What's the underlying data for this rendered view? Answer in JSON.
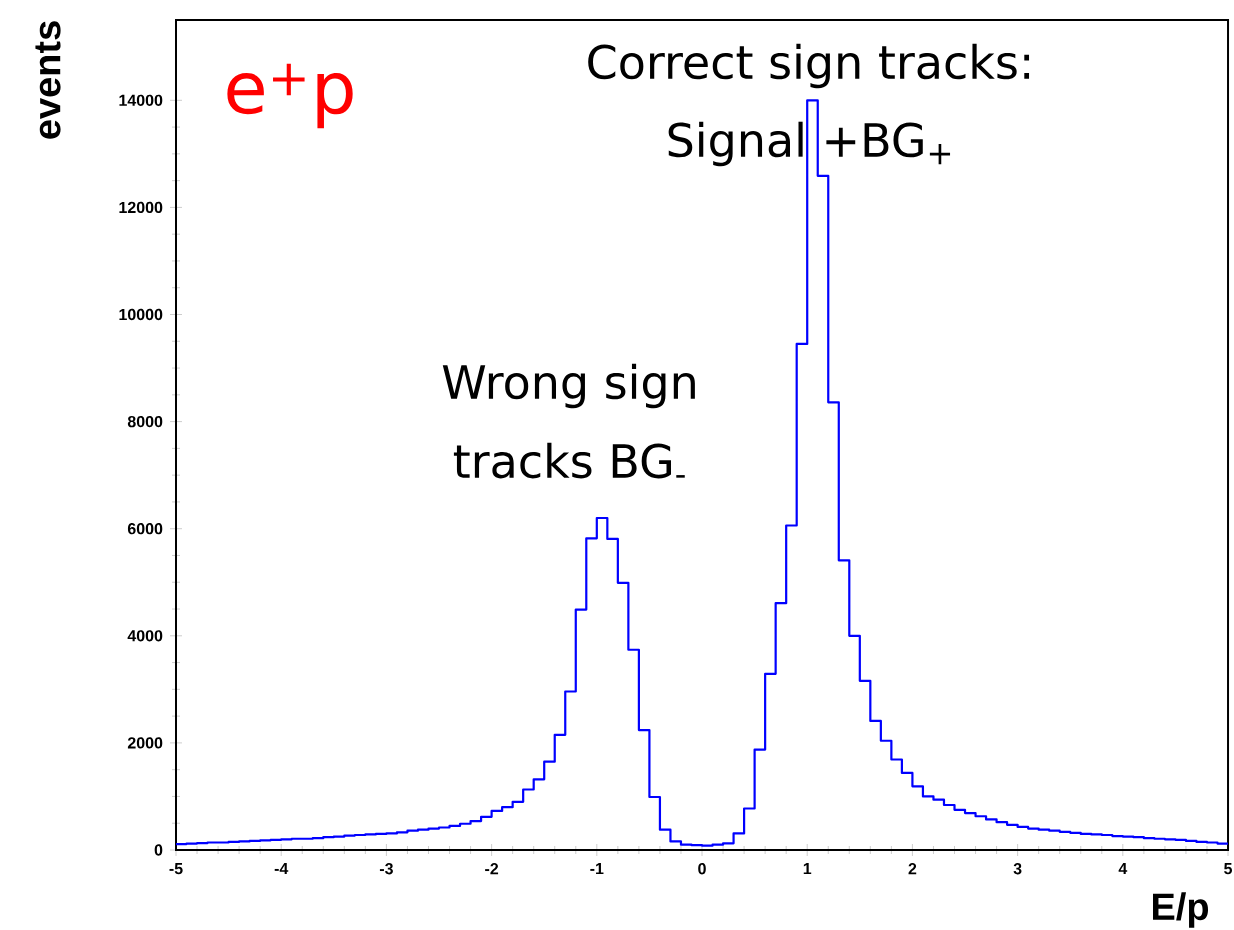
{
  "chart_data": {
    "type": "histogram",
    "xlabel": "E/p",
    "ylabel": "events",
    "annotations": [
      "e$^{+}$p",
      "Correct sign tracks:",
      "Signal +BG$_{+}$",
      "Wrong sign",
      "tracks BG$_{-}$"
    ],
    "color": "#0000ff",
    "bins": [
      -5,
      -4.9,
      -4.8,
      -4.7,
      -4.6,
      -4.5,
      -4.4,
      -4.3,
      -4.2,
      -4.1,
      -4,
      -3.9,
      -3.8,
      -3.7,
      -3.6,
      -3.5,
      -3.4,
      -3.3,
      -3.2,
      -3.1,
      -3,
      -2.9,
      -2.8,
      -2.7,
      -2.6,
      -2.5,
      -2.4,
      -2.3,
      -2.2,
      -2.1,
      -2,
      -1.9,
      -1.8,
      -1.7,
      -1.6,
      -1.5,
      -1.4,
      -1.3,
      -1.2,
      -1.1,
      -1,
      -0.9,
      -0.8,
      -0.7,
      -0.6,
      -0.5,
      -0.4,
      -0.3,
      -0.2,
      -0.1,
      0,
      0.1,
      0.2,
      0.3,
      0.4,
      0.5,
      0.6,
      0.7,
      0.8,
      0.9,
      1,
      1.1,
      1.2,
      1.3,
      1.4,
      1.5,
      1.6,
      1.7,
      1.8,
      1.9,
      2,
      2.1,
      2.2,
      2.3,
      2.4,
      2.5,
      2.6,
      2.7,
      2.8,
      2.9,
      3,
      3.1,
      3.2,
      3.3,
      3.4,
      3.5,
      3.6,
      3.7,
      3.8,
      3.9,
      4,
      4.1,
      4.2,
      4.3,
      4.4,
      4.5,
      4.6,
      4.7,
      4.8,
      4.9,
      5
    ],
    "values": [
      110,
      120,
      130,
      140,
      140,
      150,
      160,
      170,
      180,
      190,
      200,
      210,
      210,
      220,
      240,
      250,
      270,
      280,
      290,
      300,
      310,
      330,
      360,
      380,
      400,
      420,
      450,
      490,
      540,
      620,
      730,
      800,
      900,
      1130,
      1320,
      1650,
      2150,
      2960,
      4490,
      5820,
      6200,
      5810,
      4990,
      3740,
      2240,
      990,
      380,
      160,
      100,
      90,
      80,
      100,
      125,
      310,
      775,
      1875,
      3290,
      4610,
      6060,
      9450,
      14000,
      12590,
      8360,
      5410,
      4000,
      3160,
      2410,
      2040,
      1690,
      1440,
      1190,
      1000,
      940,
      840,
      750,
      690,
      630,
      570,
      520,
      470,
      430,
      400,
      380,
      360,
      340,
      320,
      300,
      290,
      280,
      260,
      250,
      240,
      220,
      210,
      200,
      190,
      170,
      150,
      140,
      120
    ],
    "xlim": [
      -5,
      5
    ],
    "ylim": [
      0,
      15500
    ],
    "xticks": [
      -5,
      -4,
      -3,
      -2,
      -1,
      0,
      1,
      2,
      3,
      4,
      5
    ],
    "yticks": [
      0,
      2000,
      4000,
      6000,
      8000,
      10000,
      12000,
      14000
    ]
  }
}
